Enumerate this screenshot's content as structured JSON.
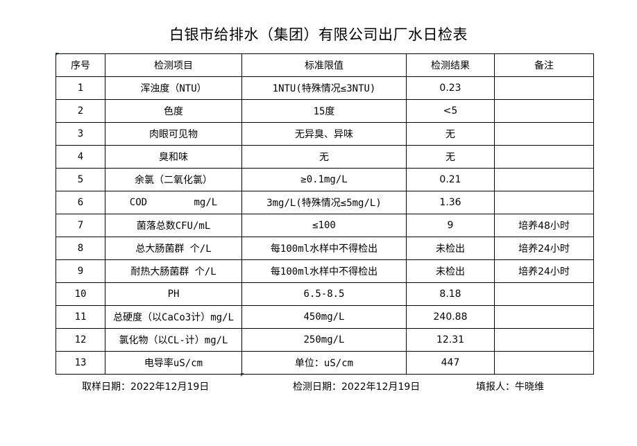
{
  "title": "白银市给排水（集团）有限公司出厂水日检表",
  "table": {
    "headers": [
      "序号",
      "检测项目",
      "标准限值",
      "检测结果",
      "备注"
    ],
    "rows": [
      [
        "1",
        "浑浊度（NTU）",
        "1NTU(特殊情况≤3NTU)",
        "0.23",
        ""
      ],
      [
        "2",
        "色度",
        "15度",
        "<5",
        ""
      ],
      [
        "3",
        "肉眼可见物",
        "无异臭、异味",
        "无",
        ""
      ],
      [
        "4",
        "臭和味",
        "无",
        "无",
        ""
      ],
      [
        "5",
        "余氯（二氧化氯）",
        "≥0.1mg/L",
        "0.21",
        ""
      ],
      [
        "6",
        "COD        mg/L",
        "3mg/L(特殊情况≤5mg/L)",
        "1.36",
        ""
      ],
      [
        "7",
        "菌落总数CFU/mL",
        "≤100",
        "9",
        "培养48小时"
      ],
      [
        "8",
        "总大肠菌群 个/L",
        "每100ml水样中不得检出",
        "未检出",
        "培养24小时"
      ],
      [
        "9",
        "耐热大肠菌群 个/L",
        "每100ml水样中不得检出",
        "未检出",
        "培养24小时"
      ],
      [
        "10",
        "PH",
        "6.5-8.5",
        "8.18",
        ""
      ],
      [
        "11",
        "总硬度（以CaCo3计）mg/L",
        "450mg/L",
        "240.88",
        ""
      ],
      [
        "12",
        "氯化物（以CL-计）mg/L",
        "250mg/L",
        "12.31",
        ""
      ],
      [
        "13",
        "电导率uS/cm",
        "单位：uS/cm",
        "447",
        ""
      ]
    ]
  },
  "footer": {
    "sample_date": "取样日期：2022年12月19日",
    "test_date": "检测日期：2022年12月19日",
    "reporter": "填报人：牛晓维"
  }
}
